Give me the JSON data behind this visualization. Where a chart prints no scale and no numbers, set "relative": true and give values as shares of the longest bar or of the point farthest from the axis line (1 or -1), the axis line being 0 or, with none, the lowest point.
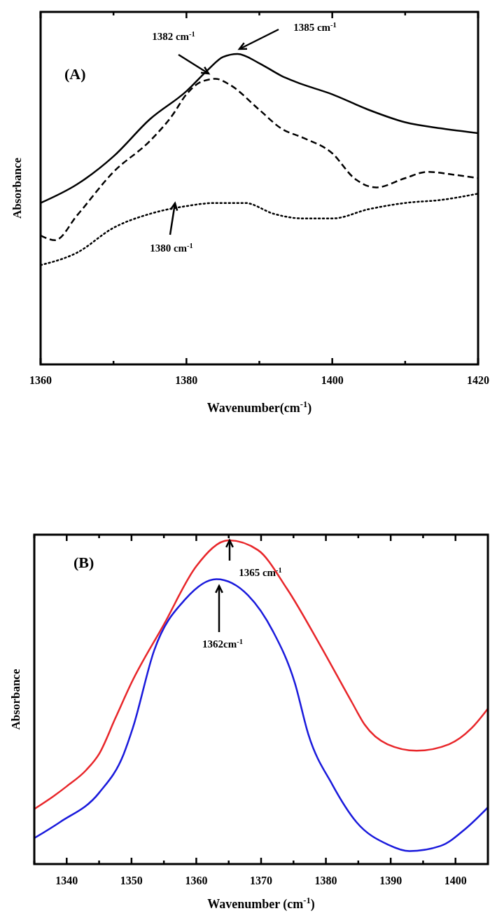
{
  "chart_data": [
    {
      "type": "line",
      "title": "(A)",
      "xlabel": "Wavenumber(cm$^{-1}$)",
      "ylabel": "Absorbance",
      "relative": true,
      "xlim": [
        1360,
        1420
      ],
      "xticks": [
        1360,
        {
          "value": 1370,
          "label": null
        },
        1380,
        {
          "value": 1390,
          "label": null
        },
        1400,
        {
          "value": 1410,
          "label": null
        },
        1420
      ],
      "series": [
        {
          "color": "#000000",
          "line_style": "solid",
          "x": [
            1360,
            1365,
            1370,
            1375,
            1380,
            1383,
            1385,
            1387,
            1390,
            1393,
            1395,
            1400,
            1405,
            1410,
            1415,
            1420
          ],
          "values": [
            0.52,
            0.58,
            0.67,
            0.79,
            0.88,
            0.95,
            0.99,
            1.0,
            0.97,
            0.93,
            0.91,
            0.87,
            0.82,
            0.78,
            0.76,
            0.745
          ]
        },
        {
          "color": "#000000",
          "line_style": "dashed",
          "x": [
            1360,
            1362,
            1365,
            1370,
            1375,
            1378,
            1380,
            1382,
            1384,
            1386,
            1390,
            1393,
            1396,
            1400,
            1403,
            1406,
            1410,
            1413,
            1417,
            1420
          ],
          "values": [
            0.415,
            0.4,
            0.48,
            0.62,
            0.72,
            0.8,
            0.87,
            0.91,
            0.92,
            0.9,
            0.82,
            0.76,
            0.73,
            0.68,
            0.6,
            0.57,
            0.6,
            0.62,
            0.61,
            0.6
          ]
        },
        {
          "color": "#000000",
          "line_style": "dotted",
          "x": [
            1360,
            1365,
            1370,
            1375,
            1380,
            1384,
            1388,
            1392,
            1396,
            1400,
            1405,
            1410,
            1415,
            1420
          ],
          "values": [
            0.32,
            0.36,
            0.44,
            0.485,
            0.51,
            0.52,
            0.52,
            0.485,
            0.47,
            0.47,
            0.5,
            0.52,
            0.53,
            0.55
          ]
        }
      ],
      "annotations": [
        "1382 cm$^{-1}$",
        "1385 cm$^{-1}$",
        "1380 cm$^{-1}$"
      ]
    },
    {
      "type": "line",
      "title": "(B)",
      "xlabel": "Wavenumber (cm$^{-1}$)",
      "ylabel": "Absorbance",
      "relative": true,
      "xlim": [
        1335,
        1405
      ],
      "xticks": [
        {
          "value": 1335,
          "label": null
        },
        1340,
        {
          "value": 1345,
          "label": null
        },
        1350,
        {
          "value": 1355,
          "label": null
        },
        1360,
        {
          "value": 1365,
          "label": null
        },
        1370,
        {
          "value": 1375,
          "label": null
        },
        1380,
        {
          "value": 1385,
          "label": null
        },
        1390,
        {
          "value": 1395,
          "label": null
        },
        1400
      ],
      "series": [
        {
          "color": "#e8262a",
          "line_style": "solid",
          "x": [
            1335,
            1338,
            1340,
            1343,
            1345,
            1347.5,
            1350,
            1355,
            1360,
            1365,
            1369.5,
            1374,
            1379,
            1384,
            1386,
            1389.5,
            1394,
            1399,
            1402.5,
            1405
          ],
          "values": [
            0.17,
            0.21,
            0.24,
            0.29,
            0.34,
            0.45,
            0.56,
            0.74,
            0.92,
            1.0,
            0.97,
            0.85,
            0.68,
            0.5,
            0.43,
            0.37,
            0.35,
            0.37,
            0.42,
            0.48
          ]
        },
        {
          "color": "#1a1adc",
          "line_style": "solid",
          "x": [
            1335,
            1339,
            1345,
            1348.8,
            1350.2,
            1353.5,
            1358.4,
            1363.1,
            1368,
            1371.8,
            1375.2,
            1377.3,
            1381,
            1384.7,
            1389.6,
            1392.9,
            1397.7,
            1401.6,
            1405
          ],
          "values": [
            0.08,
            0.13,
            0.22,
            0.34,
            0.42,
            0.66,
            0.82,
            0.88,
            0.83,
            0.72,
            0.56,
            0.4,
            0.245,
            0.13,
            0.06,
            0.04,
            0.056,
            0.11,
            0.175
          ]
        }
      ],
      "annotations": [
        "1365 cm$^{-1}$",
        "1362cm$^{-1}$"
      ]
    }
  ]
}
